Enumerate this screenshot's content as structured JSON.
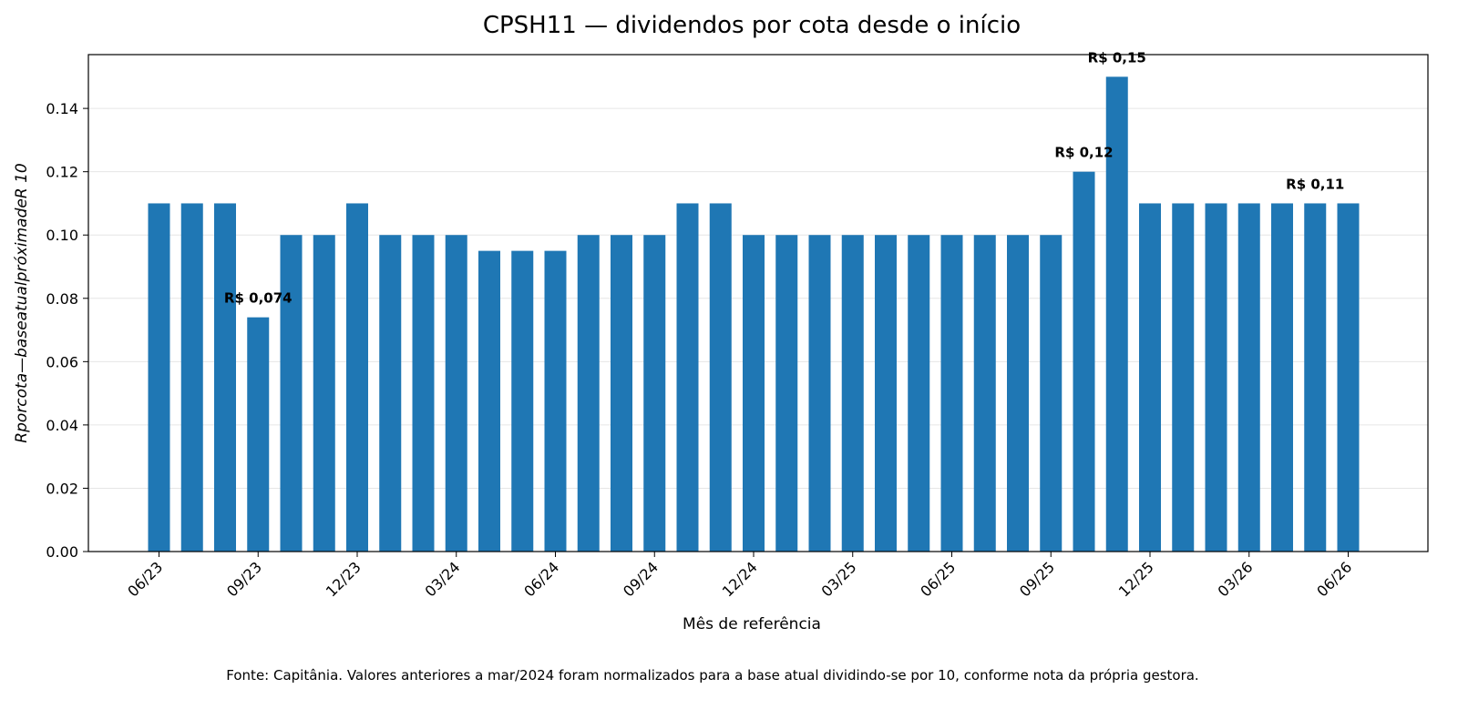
{
  "chart_data": {
    "type": "bar",
    "title": "CPSH11 — dividendos por cota desde o início",
    "xlabel": "Mês de referência",
    "ylabel": "Rporcota—baseatualpróximadeR 10",
    "ylim": [
      0,
      0.157
    ],
    "yticks": [
      "0.00",
      "0.02",
      "0.04",
      "0.06",
      "0.08",
      "0.10",
      "0.12",
      "0.14"
    ],
    "grid": "horizontal",
    "bar_color": "#1f77b4",
    "categories": [
      "06/23",
      "07/23",
      "08/23",
      "09/23",
      "10/23",
      "11/23",
      "12/23",
      "01/24",
      "02/24",
      "03/24",
      "04/24",
      "05/24",
      "06/24",
      "07/24",
      "08/24",
      "09/24",
      "10/24",
      "11/24",
      "12/24",
      "01/25",
      "02/25",
      "03/25",
      "04/25",
      "05/25",
      "06/25",
      "07/25",
      "08/25",
      "09/25",
      "10/25",
      "11/25",
      "12/25",
      "01/26",
      "02/26",
      "03/26",
      "04/26",
      "05/26",
      "06/26"
    ],
    "values": [
      0.11,
      0.11,
      0.11,
      0.074,
      0.1,
      0.1,
      0.11,
      0.1,
      0.1,
      0.1,
      0.095,
      0.095,
      0.095,
      0.1,
      0.1,
      0.1,
      0.11,
      0.11,
      0.1,
      0.1,
      0.1,
      0.1,
      0.1,
      0.1,
      0.1,
      0.1,
      0.1,
      0.1,
      0.12,
      0.15,
      0.11,
      0.11,
      0.11,
      0.11,
      0.11,
      0.11,
      0.11
    ],
    "xticks": [
      "06/23",
      "09/23",
      "12/23",
      "03/24",
      "06/24",
      "09/24",
      "12/24",
      "03/25",
      "06/25",
      "09/25",
      "12/25",
      "03/26",
      "06/26"
    ],
    "annotations": [
      {
        "index": 3,
        "text": "R$ 0,074"
      },
      {
        "index": 28,
        "text": "R$ 0,12"
      },
      {
        "index": 29,
        "text": "R$ 0,15"
      },
      {
        "index": 35,
        "text": "R$ 0,11"
      }
    ],
    "footnote": "Fonte: Capitânia. Valores anteriores a mar/2024 foram normalizados para a base atual dividindo-se por 10, conforme nota da própria gestora."
  }
}
